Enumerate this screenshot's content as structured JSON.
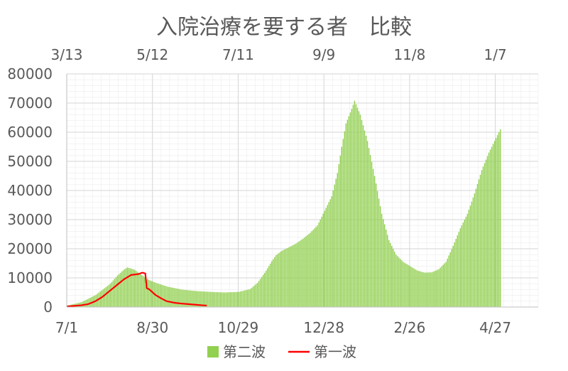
{
  "chart_data": {
    "type": "bar",
    "title": "入院治療を要する者　比較",
    "colors": {
      "bar": "#92d050",
      "line": "#ff0000"
    },
    "x_bottom": {
      "ticks": [
        "7/1",
        "8/30",
        "10/29",
        "12/28",
        "2/26",
        "4/27"
      ],
      "tick_days": [
        0,
        60,
        120,
        180,
        240,
        300
      ],
      "range_days": [
        0,
        330
      ]
    },
    "x_top": {
      "ticks": [
        "3/13",
        "5/12",
        "7/11",
        "9/9",
        "11/8",
        "1/7"
      ],
      "tick_days": [
        0,
        60,
        120,
        180,
        240,
        300
      ],
      "range_days": [
        0,
        330
      ]
    },
    "ylim": [
      0,
      80000
    ],
    "y_ticks": [
      "0",
      "10000",
      "20000",
      "30000",
      "40000",
      "50000",
      "60000",
      "70000",
      "80000"
    ],
    "y_tick_values": [
      0,
      10000,
      20000,
      30000,
      40000,
      50000,
      60000,
      70000,
      80000
    ],
    "grid": true,
    "legend_position": "bottom",
    "series": [
      {
        "name": "第二波",
        "type": "bar",
        "axis": "bottom",
        "points": [
          [
            0,
            500
          ],
          [
            10,
            1700
          ],
          [
            20,
            4200
          ],
          [
            30,
            8000
          ],
          [
            35,
            10800
          ],
          [
            40,
            13000
          ],
          [
            42,
            13600
          ],
          [
            47,
            12800
          ],
          [
            52,
            11000
          ],
          [
            57,
            9300
          ],
          [
            62,
            8300
          ],
          [
            70,
            7000
          ],
          [
            80,
            6000
          ],
          [
            90,
            5500
          ],
          [
            100,
            5200
          ],
          [
            110,
            5000
          ],
          [
            120,
            5200
          ],
          [
            128,
            6200
          ],
          [
            133,
            8300
          ],
          [
            138,
            11700
          ],
          [
            143,
            15700
          ],
          [
            146,
            17800
          ],
          [
            150,
            19300
          ],
          [
            155,
            20500
          ],
          [
            160,
            21800
          ],
          [
            165,
            23500
          ],
          [
            170,
            25500
          ],
          [
            175,
            28000
          ],
          [
            180,
            33000
          ],
          [
            185,
            38000
          ],
          [
            189,
            46000
          ],
          [
            192,
            55000
          ],
          [
            195,
            63000
          ],
          [
            199,
            68000
          ],
          [
            201,
            70800
          ],
          [
            205,
            66000
          ],
          [
            210,
            57000
          ],
          [
            215,
            45000
          ],
          [
            220,
            32000
          ],
          [
            225,
            23000
          ],
          [
            230,
            18000
          ],
          [
            235,
            15500
          ],
          [
            240,
            14000
          ],
          [
            245,
            12500
          ],
          [
            250,
            11800
          ],
          [
            255,
            11900
          ],
          [
            260,
            13000
          ],
          [
            265,
            15500
          ],
          [
            270,
            21000
          ],
          [
            275,
            27000
          ],
          [
            280,
            32000
          ],
          [
            285,
            39000
          ],
          [
            290,
            47000
          ],
          [
            295,
            53000
          ],
          [
            300,
            58000
          ],
          [
            303,
            61000
          ]
        ]
      },
      {
        "name": "第一波",
        "type": "line",
        "axis": "bottom",
        "points": [
          [
            0,
            200
          ],
          [
            10,
            600
          ],
          [
            15,
            1000
          ],
          [
            20,
            2000
          ],
          [
            25,
            3500
          ],
          [
            30,
            5500
          ],
          [
            35,
            7500
          ],
          [
            40,
            9500
          ],
          [
            45,
            11000
          ],
          [
            50,
            11300
          ],
          [
            53,
            11800
          ],
          [
            55,
            11500
          ],
          [
            56,
            6500
          ],
          [
            58,
            6000
          ],
          [
            62,
            4200
          ],
          [
            66,
            3000
          ],
          [
            70,
            2000
          ],
          [
            75,
            1500
          ],
          [
            80,
            1200
          ],
          [
            85,
            1000
          ],
          [
            90,
            800
          ],
          [
            95,
            600
          ],
          [
            98,
            500
          ]
        ]
      }
    ]
  }
}
